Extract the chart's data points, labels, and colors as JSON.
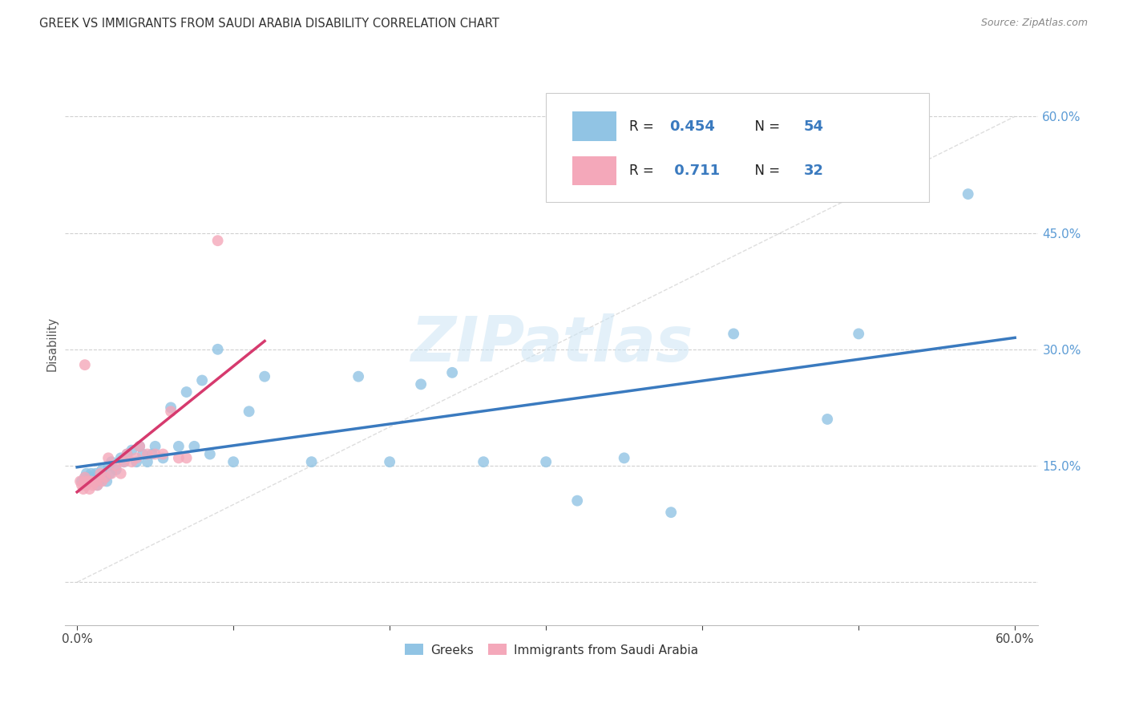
{
  "title": "GREEK VS IMMIGRANTS FROM SAUDI ARABIA DISABILITY CORRELATION CHART",
  "source": "Source: ZipAtlas.com",
  "ylabel": "Disability",
  "watermark": "ZIPatlas",
  "xlim": [
    0.0,
    0.6
  ],
  "ylim": [
    -0.05,
    0.65
  ],
  "ytick_pos": [
    0.0,
    0.15,
    0.3,
    0.45,
    0.6
  ],
  "ytick_labels": [
    "",
    "15.0%",
    "30.0%",
    "45.0%",
    "60.0%"
  ],
  "xtick_pos": [
    0.0,
    0.1,
    0.2,
    0.3,
    0.4,
    0.5,
    0.6
  ],
  "xtick_labels": [
    "0.0%",
    "",
    "",
    "",
    "",
    "",
    "60.0%"
  ],
  "color_blue": "#91c4e4",
  "color_blue_line": "#3a7abf",
  "color_pink": "#f4a8ba",
  "color_pink_line": "#d63a6e",
  "color_diag": "#cccccc",
  "background": "#ffffff",
  "tick_color": "#5b9bd5",
  "legend_text_color": "#333333",
  "legend_val_color": "#3a7abf",
  "r_greek": 0.454,
  "n_greek": 54,
  "r_saudi": 0.711,
  "n_saudi": 32,
  "greek_x": [
    0.003,
    0.005,
    0.006,
    0.007,
    0.008,
    0.009,
    0.01,
    0.011,
    0.012,
    0.013,
    0.014,
    0.015,
    0.016,
    0.018,
    0.019,
    0.02,
    0.021,
    0.022,
    0.025,
    0.028,
    0.03,
    0.032,
    0.035,
    0.038,
    0.04,
    0.042,
    0.045,
    0.048,
    0.05,
    0.055,
    0.06,
    0.065,
    0.07,
    0.075,
    0.08,
    0.085,
    0.09,
    0.1,
    0.11,
    0.12,
    0.15,
    0.18,
    0.2,
    0.22,
    0.24,
    0.26,
    0.3,
    0.32,
    0.35,
    0.38,
    0.42,
    0.48,
    0.5,
    0.57
  ],
  "greek_y": [
    0.13,
    0.135,
    0.14,
    0.13,
    0.135,
    0.14,
    0.13,
    0.135,
    0.14,
    0.125,
    0.13,
    0.135,
    0.145,
    0.135,
    0.13,
    0.15,
    0.14,
    0.155,
    0.145,
    0.16,
    0.155,
    0.165,
    0.17,
    0.155,
    0.175,
    0.165,
    0.155,
    0.165,
    0.175,
    0.16,
    0.225,
    0.175,
    0.245,
    0.175,
    0.26,
    0.165,
    0.3,
    0.155,
    0.22,
    0.265,
    0.155,
    0.265,
    0.155,
    0.255,
    0.27,
    0.155,
    0.155,
    0.105,
    0.16,
    0.09,
    0.32,
    0.21,
    0.32,
    0.5
  ],
  "saudi_x": [
    0.002,
    0.003,
    0.004,
    0.005,
    0.005,
    0.006,
    0.007,
    0.008,
    0.009,
    0.01,
    0.012,
    0.013,
    0.015,
    0.016,
    0.018,
    0.02,
    0.022,
    0.025,
    0.028,
    0.03,
    0.032,
    0.035,
    0.038,
    0.04,
    0.045,
    0.05,
    0.055,
    0.06,
    0.065,
    0.07,
    0.005,
    0.09
  ],
  "saudi_y": [
    0.13,
    0.125,
    0.12,
    0.135,
    0.13,
    0.125,
    0.13,
    0.12,
    0.13,
    0.125,
    0.13,
    0.125,
    0.14,
    0.13,
    0.135,
    0.16,
    0.14,
    0.15,
    0.14,
    0.155,
    0.165,
    0.155,
    0.16,
    0.175,
    0.165,
    0.165,
    0.165,
    0.22,
    0.16,
    0.16,
    0.28,
    0.44
  ]
}
